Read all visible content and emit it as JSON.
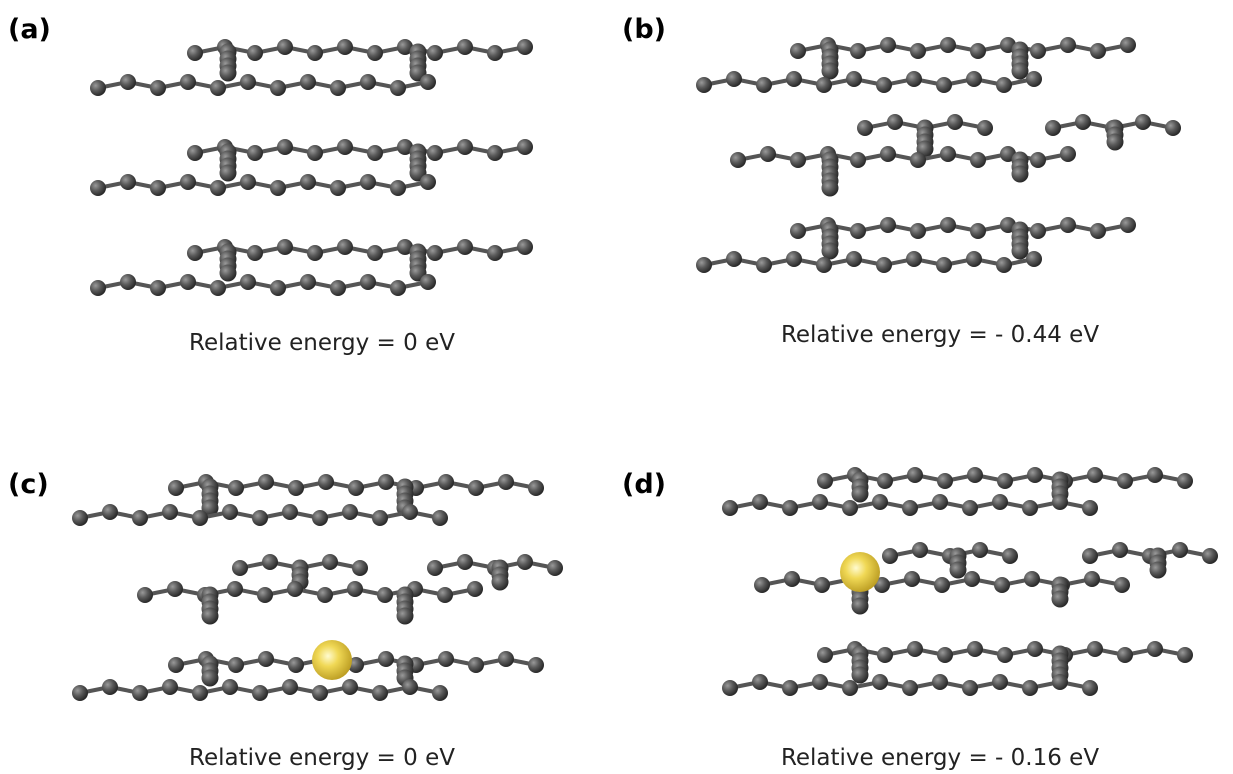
{
  "panels": [
    {
      "label": "(a)",
      "caption": "Relative energy = 0 eV"
    },
    {
      "label": "(b)",
      "caption": "Relative energy = - 0.44 eV"
    },
    {
      "label": "(c)",
      "caption": "Relative energy = 0 eV"
    },
    {
      "label": "(d)",
      "caption": "Relative energy = - 0.16 eV"
    }
  ]
}
